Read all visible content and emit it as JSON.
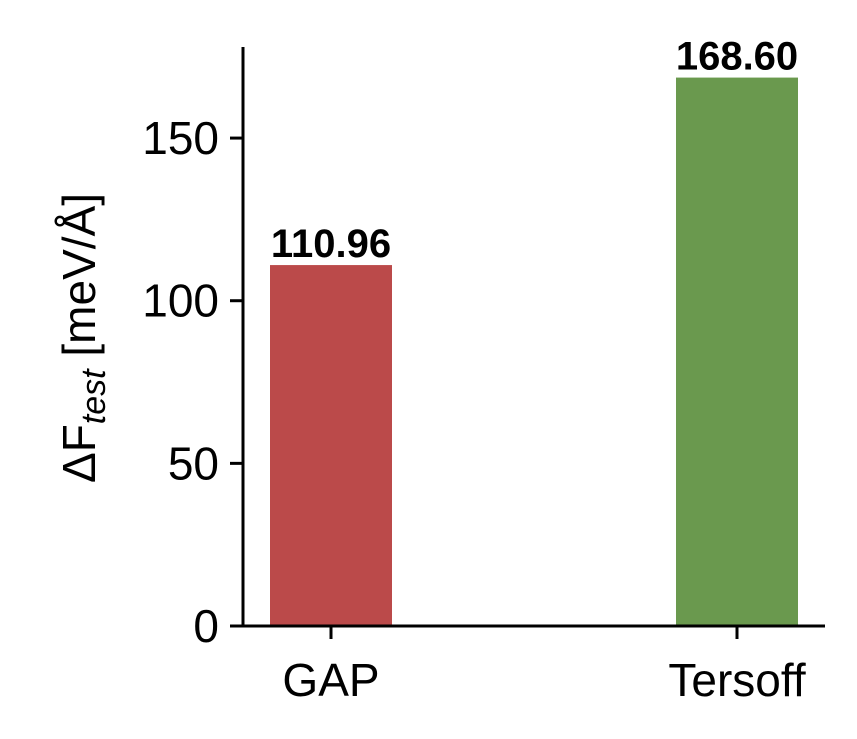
{
  "chart_data": {
    "type": "bar",
    "title": "",
    "xlabel": "",
    "ylabel": {
      "prefix": "ΔF",
      "subscript": "test",
      "suffix": " [meV/Å]"
    },
    "categories": [
      "GAP",
      "Tersoff"
    ],
    "values": [
      110.96,
      168.6
    ],
    "value_labels": [
      "110.96",
      "168.60"
    ],
    "colors": [
      "#bb4a4a",
      "#6a994e"
    ],
    "ylim": [
      0,
      178
    ],
    "yticks": [
      0,
      50,
      100,
      150
    ],
    "ytick_labels": [
      "0",
      "50",
      "100",
      "150"
    ],
    "grid": false,
    "legend": "none"
  }
}
